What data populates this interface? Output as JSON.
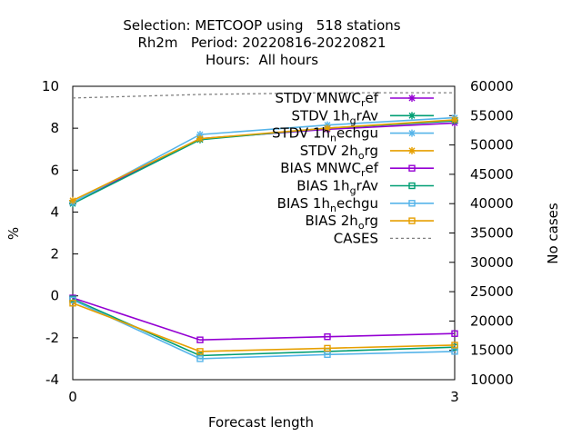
{
  "chart_data": {
    "type": "line",
    "title_lines": [
      "Selection: METCOOP using   518 stations",
      "Rh2m   Period: 20220816-20220821",
      "Hours:  All hours"
    ],
    "xlabel": "Forecast length",
    "ylabel": "%",
    "y2label": "No cases",
    "x": [
      0,
      1,
      2,
      3
    ],
    "xticks": [
      "0",
      "3"
    ],
    "xlim": [
      0,
      3
    ],
    "ylim": [
      -4,
      10
    ],
    "y2lim": [
      10000,
      60000
    ],
    "yticks": [
      "-4",
      "-2",
      "0",
      "2",
      "4",
      "6",
      "8",
      "10"
    ],
    "y2ticks": [
      "10000",
      "15000",
      "20000",
      "25000",
      "30000",
      "35000",
      "40000",
      "45000",
      "50000",
      "55000",
      "60000"
    ],
    "legend_position": "top-right",
    "series": [
      {
        "name": "STDV MNWC_ref",
        "axis": "y",
        "color": "#9400d3",
        "marker": "star",
        "values": [
          4.45,
          7.5,
          7.95,
          8.25
        ]
      },
      {
        "name": "STDV 1h_grAv",
        "axis": "y",
        "color": "#009e73",
        "marker": "star",
        "values": [
          4.4,
          7.45,
          8.0,
          8.35
        ]
      },
      {
        "name": "STDV 1h_nechgu",
        "axis": "y",
        "color": "#56b4e9",
        "marker": "star",
        "values": [
          4.45,
          7.7,
          8.15,
          8.5
        ]
      },
      {
        "name": "STDV 2h_org",
        "axis": "y",
        "color": "#e69f00",
        "marker": "star",
        "values": [
          4.55,
          7.5,
          8.0,
          8.4
        ]
      },
      {
        "name": "BIAS MNWC_ref",
        "axis": "y",
        "color": "#9400d3",
        "marker": "square",
        "values": [
          -0.1,
          -2.1,
          -1.95,
          -1.8
        ]
      },
      {
        "name": "BIAS 1h_grAv",
        "axis": "y",
        "color": "#009e73",
        "marker": "square",
        "values": [
          -0.15,
          -2.85,
          -2.65,
          -2.45
        ]
      },
      {
        "name": "BIAS 1h_nechgu",
        "axis": "y",
        "color": "#56b4e9",
        "marker": "square",
        "values": [
          -0.2,
          -3.0,
          -2.8,
          -2.65
        ]
      },
      {
        "name": "BIAS 2h_org",
        "axis": "y",
        "color": "#e69f00",
        "marker": "square",
        "values": [
          -0.35,
          -2.65,
          -2.5,
          -2.35
        ]
      },
      {
        "name": "CASES",
        "axis": "y2",
        "color": "#808080",
        "dashed": true,
        "values": [
          58000,
          58600,
          58900,
          58900
        ]
      }
    ]
  },
  "legend": {
    "entries": [
      {
        "main": "STDV MNWC",
        "sub": "r",
        "rest": "ef"
      },
      {
        "main": "STDV 1h",
        "sub": "g",
        "rest": "rAv"
      },
      {
        "main": "STDV 1h",
        "sub": "n",
        "rest": "echgu"
      },
      {
        "main": "STDV 2h",
        "sub": "o",
        "rest": "rg"
      },
      {
        "main": "BIAS MNWC",
        "sub": "r",
        "rest": "ef"
      },
      {
        "main": "BIAS 1h",
        "sub": "g",
        "rest": "rAv"
      },
      {
        "main": "BIAS 1h",
        "sub": "n",
        "rest": "echgu"
      },
      {
        "main": "BIAS 2h",
        "sub": "o",
        "rest": "rg"
      },
      {
        "main": "CASES",
        "sub": "",
        "rest": ""
      }
    ]
  }
}
